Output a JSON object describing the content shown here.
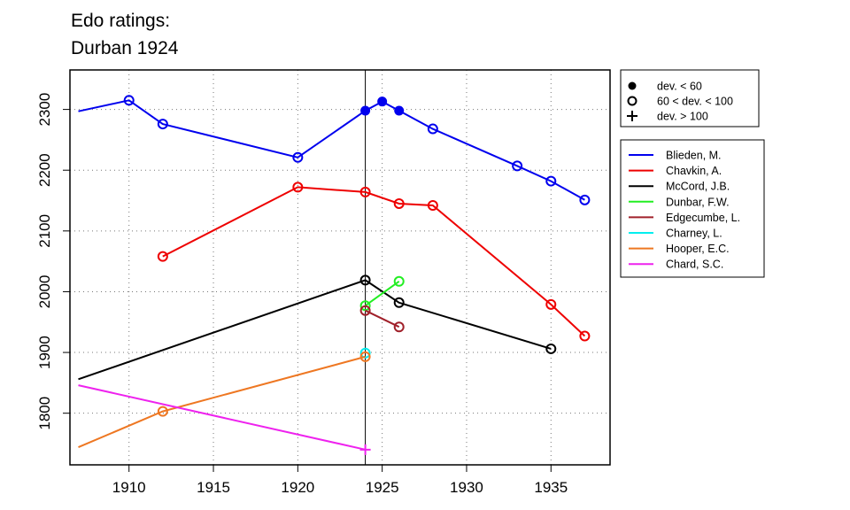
{
  "chart_data": {
    "type": "line",
    "title": [
      "Edo ratings:",
      "Durban 1924"
    ],
    "xlabel": "",
    "ylabel": "",
    "xlim": [
      1906.5,
      1938.5
    ],
    "ylim": [
      1715,
      2365
    ],
    "x_ticks": [
      "1910",
      "1915",
      "1920",
      "1925",
      "1930",
      "1935"
    ],
    "y_ticks": [
      "1800",
      "1900",
      "2000",
      "2100",
      "2200",
      "2300"
    ],
    "grid": "dotted",
    "reference_line_x": 1924,
    "symbol_legend": [
      {
        "label": "dev. < 60",
        "marker": "filled-circle"
      },
      {
        "label": "60 < dev. < 100",
        "marker": "open-circle"
      },
      {
        "label": "dev. > 100",
        "marker": "plus"
      }
    ],
    "legend_placement": "right",
    "series": [
      {
        "name": "Blieden, M.",
        "color": "#0000ee",
        "points": [
          [
            1907,
            2297,
            "none"
          ],
          [
            1910,
            2315,
            "open"
          ],
          [
            1912,
            2276,
            "open"
          ],
          [
            1920,
            2221,
            "open"
          ],
          [
            1924,
            2298,
            "filled"
          ],
          [
            1925,
            2313,
            "filled"
          ],
          [
            1926,
            2298,
            "filled"
          ],
          [
            1928,
            2268,
            "open"
          ],
          [
            1933,
            2207,
            "open"
          ],
          [
            1935,
            2182,
            "open"
          ],
          [
            1937,
            2151,
            "open"
          ]
        ]
      },
      {
        "name": "Chavkin, A.",
        "color": "#ee0000",
        "points": [
          [
            1912,
            2058,
            "open"
          ],
          [
            1920,
            2172,
            "open"
          ],
          [
            1924,
            2164,
            "open"
          ],
          [
            1926,
            2145,
            "open"
          ],
          [
            1928,
            2142,
            "open"
          ],
          [
            1935,
            1979,
            "open"
          ],
          [
            1937,
            1927,
            "open"
          ]
        ]
      },
      {
        "name": "McCord, J.B.",
        "color": "#000000",
        "points": [
          [
            1907,
            1856,
            "none"
          ],
          [
            1924,
            2019,
            "open"
          ],
          [
            1926,
            1982,
            "open"
          ],
          [
            1935,
            1906,
            "open"
          ]
        ]
      },
      {
        "name": "Dunbar, F.W.",
        "color": "#22ee22",
        "points": [
          [
            1924,
            1977,
            "open"
          ],
          [
            1926,
            2017,
            "open"
          ]
        ]
      },
      {
        "name": "Edgecumbe, L.",
        "color": "#a0202a",
        "points": [
          [
            1924,
            1969,
            "open"
          ],
          [
            1926,
            1942,
            "open"
          ]
        ]
      },
      {
        "name": "Charney, L.",
        "color": "#00eeee",
        "points": [
          [
            1924,
            1899,
            "open"
          ]
        ]
      },
      {
        "name": "Hooper, E.C.",
        "color": "#ee7722",
        "points": [
          [
            1907,
            1744,
            "none"
          ],
          [
            1912,
            1803,
            "open"
          ],
          [
            1924,
            1893,
            "open"
          ]
        ]
      },
      {
        "name": "Chard, S.C.",
        "color": "#ee22ee",
        "points": [
          [
            1907,
            1846,
            "none"
          ],
          [
            1924,
            1740,
            "plus"
          ]
        ]
      }
    ]
  }
}
